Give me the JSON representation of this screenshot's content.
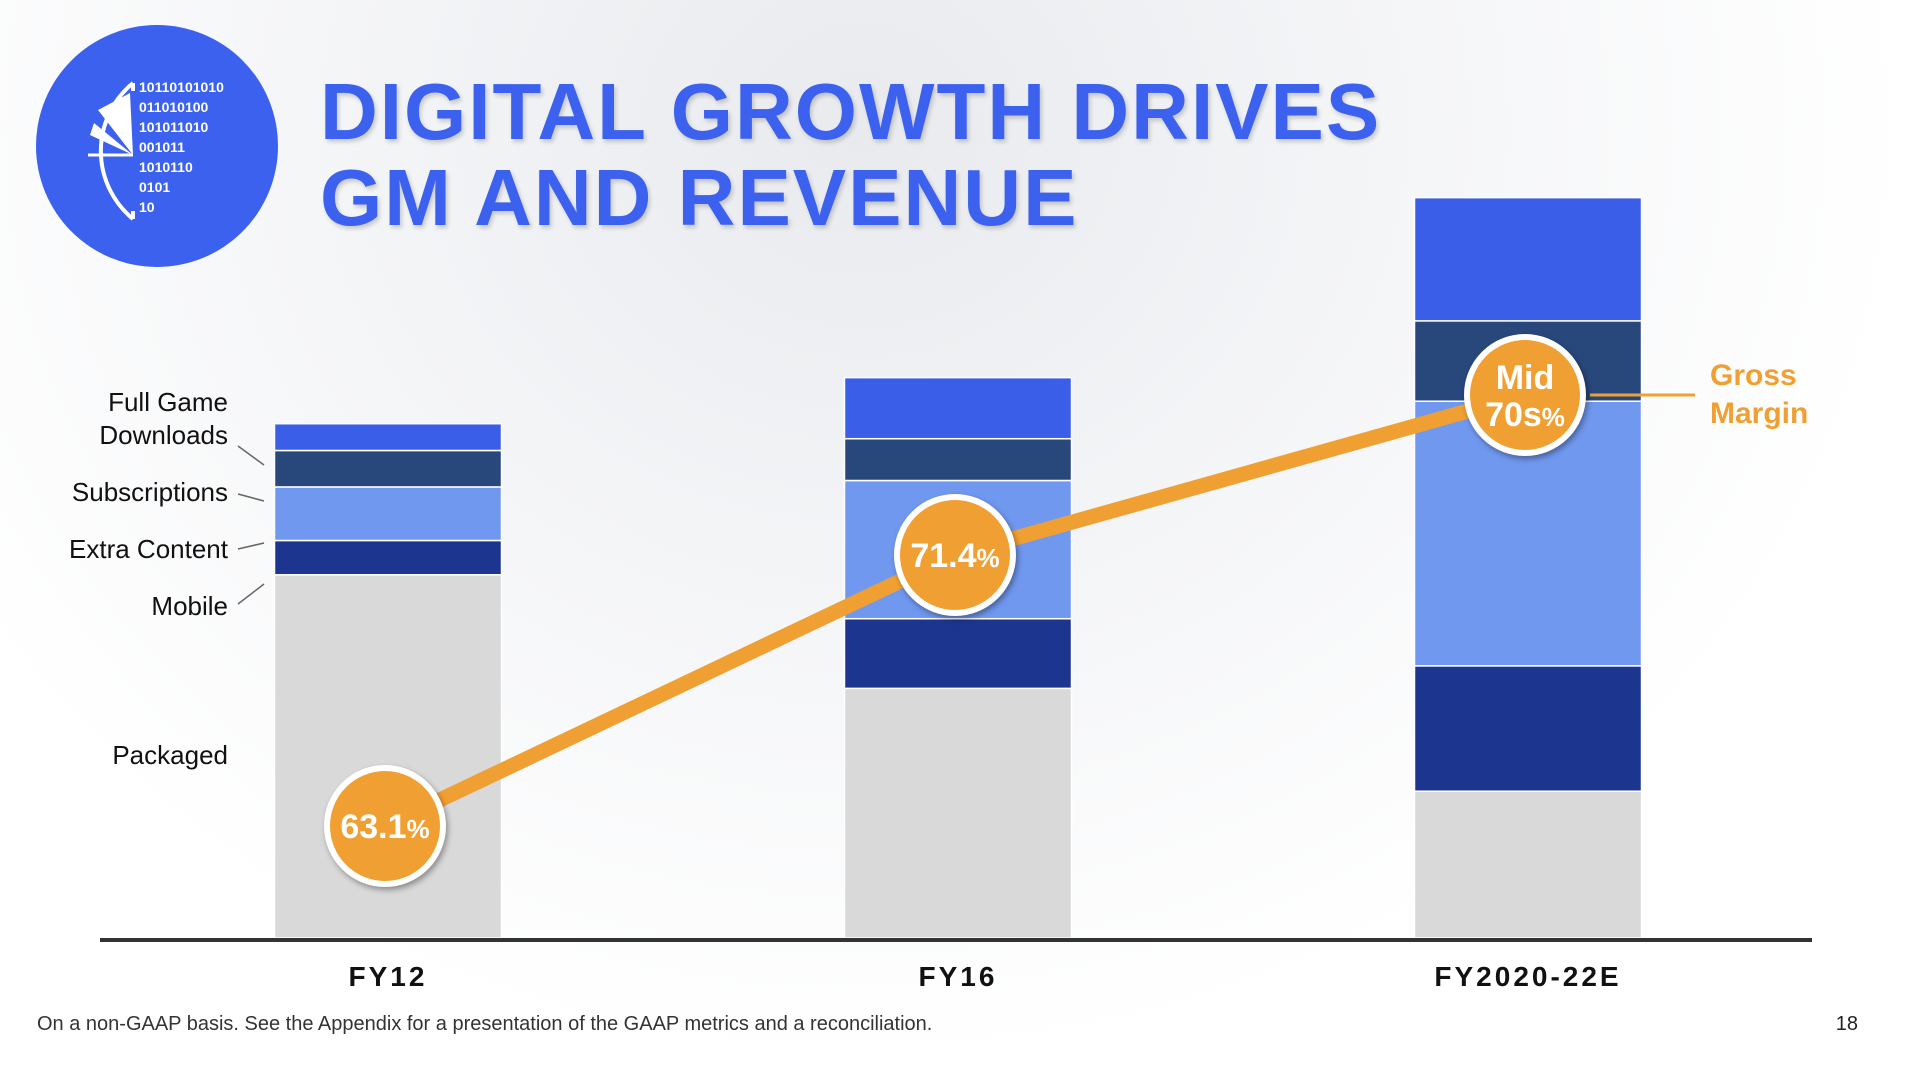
{
  "title": {
    "line1": "DIGITAL GROWTH DRIVES",
    "line2": "GM AND REVENUE"
  },
  "logo": {
    "icon": "binary-gauge-icon",
    "binary_lines": [
      "10110101010",
      "011010100",
      "101011010",
      "001011",
      "1010110",
      "0101",
      "10"
    ]
  },
  "colors": {
    "brand_blue": "#3b61ee",
    "orange": "#f0a033",
    "full_game_downloads": "#3b5ee8",
    "subscriptions": "#28477b",
    "extra_content": "#7098ef",
    "mobile": "#1c358f",
    "packaged": "#d9d9d9"
  },
  "chart_data": {
    "type": "bar",
    "stacked": true,
    "categories": [
      "FY12",
      "FY16",
      "FY2020-22E"
    ],
    "series": [
      {
        "name": "Packaged",
        "values": [
          339,
          233,
          137
        ]
      },
      {
        "name": "Mobile",
        "values": [
          32,
          65,
          117
        ]
      },
      {
        "name": "Extra Content",
        "values": [
          50,
          129,
          247
        ]
      },
      {
        "name": "Subscriptions",
        "values": [
          34,
          39,
          75
        ]
      },
      {
        "name": "Full Game Downloads",
        "values": [
          25,
          57,
          115
        ]
      }
    ],
    "ylim": [
      0,
      700
    ],
    "legend_placement": "left",
    "overlay_line": {
      "name_line1": "Gross",
      "name_line2": "Margin",
      "points": [
        {
          "category": "FY12",
          "value": 63.1,
          "label_main": "63.1",
          "label_unit": "%"
        },
        {
          "category": "FY16",
          "value": 71.4,
          "label_main": "71.4",
          "label_unit": "%"
        },
        {
          "category": "FY2020-22E",
          "value": 75,
          "label_main_line1": "Mid",
          "label_main_line2": "70s",
          "label_unit": "%"
        }
      ]
    }
  },
  "legend_labels": {
    "full_game_downloads_line1": "Full Game",
    "full_game_downloads_line2": "Downloads",
    "subscriptions": "Subscriptions",
    "extra_content": "Extra Content",
    "mobile": "Mobile",
    "packaged": "Packaged"
  },
  "footnote": "On a non-GAAP basis.  See the Appendix for a presentation of the GAAP metrics and a reconciliation.",
  "page_number": "18"
}
